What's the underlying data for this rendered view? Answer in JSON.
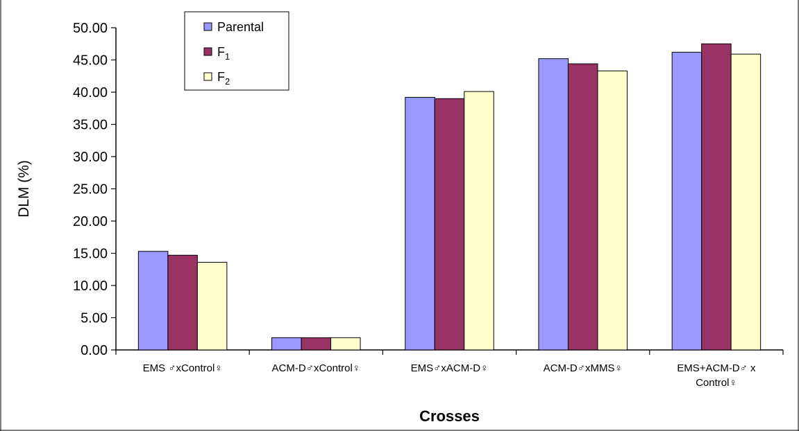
{
  "chart_data": {
    "type": "bar",
    "categories": [
      [
        "EMS ♂xControl♀"
      ],
      [
        "ACM-D♂xControl♀"
      ],
      [
        "EMS♂xACM-D♀"
      ],
      [
        "ACM-D♂xMMS♀"
      ],
      [
        "EMS+ACM-D♂ x",
        "Control♀"
      ]
    ],
    "series": [
      {
        "name": "Parental",
        "legend_main": "Parental",
        "legend_sub": "",
        "color": "#9999ff",
        "values": [
          15.3,
          1.9,
          39.2,
          45.2,
          46.2
        ]
      },
      {
        "name": "F1",
        "legend_main": "F",
        "legend_sub": "1",
        "color": "#993366",
        "values": [
          14.7,
          1.9,
          39.0,
          44.4,
          47.5
        ]
      },
      {
        "name": "F2",
        "legend_main": "F",
        "legend_sub": "2",
        "color": "#ffffcc",
        "values": [
          13.6,
          1.9,
          40.1,
          43.3,
          45.9
        ]
      }
    ],
    "ylim": [
      0,
      50
    ],
    "yticks": [
      "0.00",
      "5.00",
      "10.00",
      "15.00",
      "20.00",
      "25.00",
      "30.00",
      "35.00",
      "40.00",
      "45.00",
      "50.00"
    ],
    "xlabel": "Crosses",
    "ylabel": "DLM (%)",
    "legend_position": "top-left",
    "grid": false
  }
}
